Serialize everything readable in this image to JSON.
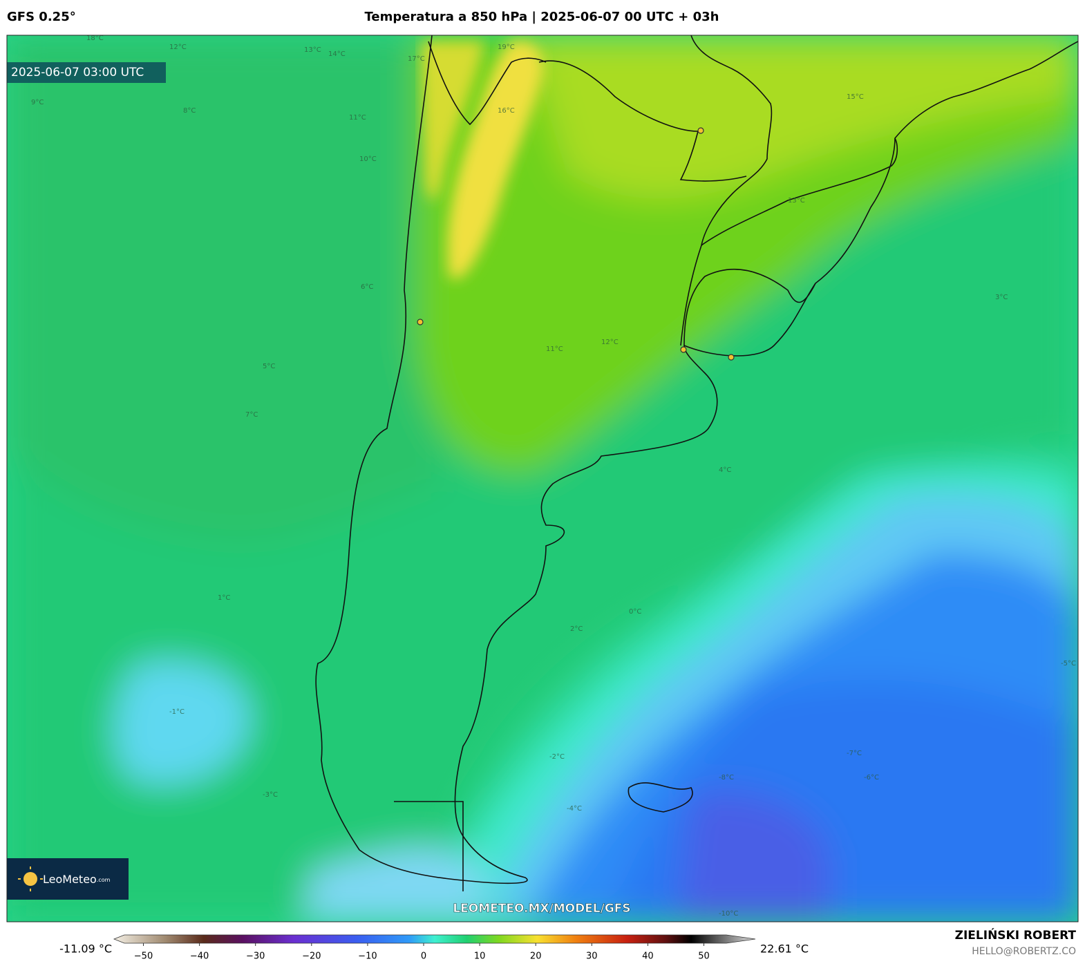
{
  "header": {
    "left": "GFS 0.25°",
    "title": "Temperatura a 850 hPa | 2025-06-07 00 UTC + 03h"
  },
  "map": {
    "timestamp": "2025-06-07 03:00 UTC",
    "logo": "LeoMeteo",
    "logo_suffix": ".com",
    "url": "LEOMETEO.MX/MODEL/GFS",
    "contour_labels": [
      "18°C",
      "17°C",
      "13°C",
      "14°C",
      "12°C",
      "19°C",
      "16°C",
      "15°C",
      "9°C",
      "8°C",
      "11°C",
      "10°C",
      "13°C",
      "6°C",
      "5°C",
      "7°C",
      "12°C",
      "11°C",
      "3°C",
      "4°C",
      "1°C",
      "0°C",
      "2°C",
      "-1°C",
      "-2°C",
      "-3°C",
      "-4°C",
      "-5°C",
      "-6°C",
      "-7°C",
      "-8°C",
      "-10°C"
    ]
  },
  "colorbar": {
    "min_label": "-11.09 °C",
    "max_label": "22.61 °C",
    "ticks": [
      {
        "value": -50,
        "label": "−50"
      },
      {
        "value": -40,
        "label": "−40"
      },
      {
        "value": -30,
        "label": "−30"
      },
      {
        "value": -20,
        "label": "−20"
      },
      {
        "value": -10,
        "label": "−10"
      },
      0,
      10,
      20,
      30,
      40,
      50
    ]
  },
  "footer": {
    "author": "ZIELIŃSKI ROBERT",
    "email": "HELLO@ROBERTZ.CO"
  }
}
